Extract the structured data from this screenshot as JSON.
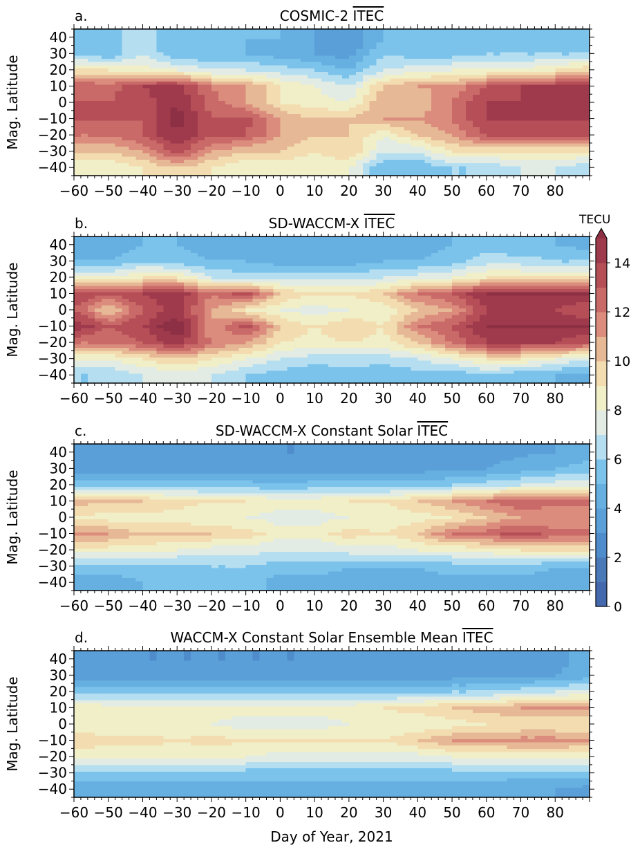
{
  "colorbar": {
    "label": "TECU",
    "levels_min": 0,
    "levels_max": 15,
    "level_step": 1,
    "extend": "max",
    "ticks": [
      0,
      2,
      4,
      6,
      8,
      10,
      12,
      14
    ],
    "colors": [
      "#4468ad",
      "#4a79b8",
      "#4f8ccb",
      "#5a9fd8",
      "#66afe1",
      "#7cc3ec",
      "#b5dff0",
      "#e2ece4",
      "#f1efc7",
      "#f2dcb0",
      "#e6b896",
      "#db8c7c",
      "#c96a69",
      "#b54e57",
      "#9e3a4b",
      "#8e3045"
    ]
  },
  "xlabel": "Day of Year, 2021",
  "chart_data": [
    {
      "type": "heatmap",
      "panel": "a.",
      "title": "COSMIC-2",
      "title_quantity": "ITEC",
      "ylabel": "Mag. Latitude",
      "xlim": [
        -60,
        90
      ],
      "ylim": [
        -45,
        45
      ],
      "xticks": [
        -60,
        -50,
        -40,
        -30,
        -20,
        -10,
        0,
        10,
        20,
        30,
        40,
        50,
        60,
        70,
        80
      ],
      "yticks": [
        40,
        30,
        20,
        10,
        0,
        -10,
        -20,
        -30,
        -40
      ],
      "x": [
        -60,
        -50,
        -40,
        -30,
        -20,
        -10,
        0,
        10,
        20,
        30,
        40,
        50,
        60,
        70,
        80,
        90
      ],
      "y": [
        40,
        30,
        20,
        10,
        0,
        -10,
        -20,
        -30,
        -40
      ],
      "z": [
        [
          6,
          5.5,
          6.5,
          5,
          5,
          5,
          5,
          4,
          3,
          5,
          5,
          5,
          5,
          5,
          6,
          5
        ],
        [
          6,
          5,
          7,
          5,
          5,
          5,
          4.5,
          4,
          3.5,
          6,
          5.5,
          5.5,
          6,
          6,
          6,
          6
        ],
        [
          9,
          9,
          8.5,
          8,
          7,
          7,
          6.5,
          6,
          5,
          7,
          7.5,
          8,
          8,
          8,
          9,
          10
        ],
        [
          13,
          12.5,
          14,
          14.5,
          12,
          11,
          9,
          8,
          7,
          10,
          11,
          11,
          13,
          14,
          14,
          14
        ],
        [
          13,
          13,
          13.5,
          15,
          12.5,
          11,
          9,
          8.5,
          8,
          11,
          10,
          12,
          14,
          14,
          15,
          14
        ],
        [
          13,
          13,
          13,
          15.5,
          13,
          13.5,
          11,
          10,
          10,
          11,
          11,
          12,
          14,
          14,
          14,
          14
        ],
        [
          12,
          12,
          13,
          15,
          13,
          13,
          11,
          10,
          10,
          8,
          10,
          11,
          13,
          13,
          13,
          13
        ],
        [
          10,
          10,
          11,
          13.5,
          11,
          10,
          10,
          9,
          10,
          7,
          7,
          9,
          9,
          9,
          9,
          9
        ],
        [
          8,
          8,
          9,
          10,
          9,
          8,
          8,
          8,
          8,
          5,
          5,
          6,
          6,
          7,
          7,
          6
        ]
      ]
    },
    {
      "type": "heatmap",
      "panel": "b.",
      "title": "SD-WACCM-X",
      "title_quantity": "ITEC",
      "ylabel": "Mag. Latitude",
      "xlim": [
        -60,
        90
      ],
      "ylim": [
        -45,
        45
      ],
      "xticks": [
        -60,
        -50,
        -40,
        -30,
        -20,
        -10,
        0,
        10,
        20,
        30,
        40,
        50,
        60,
        70,
        80
      ],
      "yticks": [
        40,
        30,
        20,
        10,
        0,
        -10,
        -20,
        -30,
        -40
      ],
      "x": [
        -60,
        -50,
        -40,
        -30,
        -20,
        -10,
        0,
        10,
        20,
        30,
        40,
        50,
        60,
        70,
        80,
        90
      ],
      "y": [
        40,
        30,
        20,
        10,
        0,
        -10,
        -20,
        -30,
        -40
      ],
      "z": [
        [
          4.5,
          4,
          5,
          5,
          4.5,
          4.5,
          4,
          4,
          4,
          4.5,
          4.5,
          5,
          5.5,
          5,
          5,
          4.5
        ],
        [
          5,
          5,
          6,
          5.5,
          5,
          5,
          4.5,
          4,
          4.5,
          5,
          5,
          5.5,
          6.5,
          6.5,
          6,
          6
        ],
        [
          8,
          8,
          9,
          9,
          7,
          6.5,
          6.5,
          6.5,
          6.5,
          7,
          7.5,
          8,
          9,
          9,
          9,
          9
        ],
        [
          14,
          13,
          14,
          15,
          12,
          13.5,
          10,
          9,
          9,
          10,
          12,
          13,
          15,
          15,
          15,
          15
        ],
        [
          13,
          10,
          13,
          14.5,
          11,
          9,
          8,
          7.5,
          8,
          8,
          10,
          11,
          14,
          14,
          14,
          13
        ],
        [
          15,
          13,
          14,
          16,
          11,
          13.5,
          10,
          9,
          10,
          9,
          12,
          13,
          15,
          15,
          15,
          15
        ],
        [
          12,
          12,
          13,
          14.5,
          12,
          11,
          9,
          8.5,
          9,
          8.5,
          10,
          12,
          14,
          14,
          14,
          13
        ],
        [
          8,
          8,
          9,
          10,
          9,
          8,
          7,
          6.5,
          6.5,
          6.5,
          7,
          8,
          9,
          9,
          8,
          7
        ],
        [
          6,
          6,
          7,
          7,
          7,
          6,
          5.5,
          5,
          5.5,
          5,
          5.5,
          5,
          6,
          5,
          5,
          4.5
        ]
      ]
    },
    {
      "type": "heatmap",
      "panel": "c.",
      "title": "SD-WACCM-X Constant Solar",
      "title_quantity": "ITEC",
      "ylabel": "Mag. Latitude",
      "xlim": [
        -60,
        90
      ],
      "ylim": [
        -45,
        45
      ],
      "xticks": [
        -60,
        -50,
        -40,
        -30,
        -20,
        -10,
        0,
        10,
        20,
        30,
        40,
        50,
        60,
        70,
        80
      ],
      "yticks": [
        40,
        30,
        20,
        10,
        0,
        -10,
        -20,
        -30,
        -40
      ],
      "x": [
        -60,
        -50,
        -40,
        -30,
        -20,
        -10,
        0,
        10,
        20,
        30,
        40,
        50,
        60,
        70,
        80,
        90
      ],
      "y": [
        40,
        30,
        20,
        10,
        0,
        -10,
        -20,
        -30,
        -40
      ],
      "z": [
        [
          3.5,
          3.5,
          3.5,
          3.5,
          3.5,
          3.5,
          3,
          3,
          3.5,
          3.5,
          3.5,
          3.5,
          3.5,
          3.8,
          4,
          4.5
        ],
        [
          3.5,
          3.5,
          3.5,
          3.5,
          3.5,
          3.5,
          3.5,
          3.5,
          3.5,
          3.5,
          3.5,
          3.8,
          4,
          4.5,
          5,
          5.5
        ],
        [
          5.5,
          5.5,
          5.5,
          5.5,
          5.5,
          5.5,
          5,
          5.5,
          5.5,
          5.5,
          5.5,
          6,
          6.5,
          7,
          7.5,
          8
        ],
        [
          10.5,
          10,
          10,
          9.5,
          9,
          9,
          8.5,
          8.5,
          9,
          9,
          10,
          11,
          12,
          13,
          12.5,
          12.5
        ],
        [
          9,
          8.5,
          8.5,
          8.5,
          8,
          8,
          7.5,
          7.5,
          8,
          8,
          8.5,
          9,
          10,
          11,
          11,
          11
        ],
        [
          11.5,
          11,
          10,
          10,
          10,
          9.5,
          8.5,
          8.5,
          9.5,
          9,
          10,
          12,
          12.5,
          13.5,
          12.5,
          12.5
        ],
        [
          8.5,
          8.5,
          8.5,
          8,
          7.5,
          7.5,
          7,
          7,
          7.5,
          7.5,
          8,
          8,
          8.5,
          9,
          9,
          9
        ],
        [
          5.5,
          5.5,
          5.5,
          5.5,
          6,
          6,
          5.5,
          5.5,
          5,
          5,
          5,
          5.5,
          5.5,
          5.5,
          5,
          5
        ],
        [
          4.5,
          4.5,
          5,
          5,
          5.5,
          5.5,
          4.5,
          4.5,
          4.5,
          4.5,
          4.5,
          4.5,
          4.5,
          4.5,
          4.5,
          4
        ]
      ]
    },
    {
      "type": "heatmap",
      "panel": "d.",
      "title": "WACCM-X Constant Solar Ensemble Mean",
      "title_quantity": "ITEC",
      "ylabel": "Mag. Latitude",
      "xlabel": "Day of Year, 2021",
      "xlim": [
        -60,
        90
      ],
      "ylim": [
        -45,
        45
      ],
      "xticks": [
        -60,
        -50,
        -40,
        -30,
        -20,
        -10,
        0,
        10,
        20,
        30,
        40,
        50,
        60,
        70,
        80
      ],
      "yticks": [
        40,
        30,
        20,
        10,
        0,
        -10,
        -20,
        -30,
        -40
      ],
      "x": [
        -60,
        -50,
        -40,
        -30,
        -20,
        -10,
        0,
        10,
        20,
        30,
        40,
        50,
        60,
        70,
        80,
        90
      ],
      "y": [
        40,
        30,
        20,
        10,
        0,
        -10,
        -20,
        -30,
        -40
      ],
      "z": [
        [
          3.5,
          3.5,
          3,
          3,
          3,
          3,
          3,
          3,
          3.5,
          3.5,
          3.5,
          3.5,
          3.5,
          3.5,
          3.5,
          4.5
        ],
        [
          3.5,
          3.5,
          3.5,
          3.5,
          3.5,
          3.5,
          3.5,
          3.5,
          3.5,
          3.5,
          3.5,
          3.5,
          3.5,
          3.8,
          4,
          4.5
        ],
        [
          5.5,
          5.5,
          5.5,
          5.5,
          5.5,
          5.5,
          5.5,
          5.5,
          5.5,
          5.5,
          5.5,
          6,
          6,
          6.5,
          7,
          7.5
        ],
        [
          9,
          8.5,
          8.5,
          8.5,
          8.5,
          8.5,
          8.5,
          8.5,
          8.5,
          9,
          9.5,
          10,
          10.5,
          11,
          11.5,
          11
        ],
        [
          8,
          8,
          8,
          8,
          8,
          7.5,
          7.5,
          7.5,
          8,
          8,
          8,
          8.5,
          9,
          9,
          9,
          9
        ],
        [
          10,
          9.5,
          9.5,
          9,
          9.5,
          9,
          9,
          9,
          9,
          9,
          10,
          11,
          11,
          11.5,
          11.5,
          11
        ],
        [
          8,
          8,
          8,
          8,
          8,
          8,
          7.5,
          7.5,
          7.5,
          7.5,
          7.5,
          8,
          8,
          8,
          8,
          8
        ],
        [
          5.5,
          5.5,
          5.5,
          5.5,
          5.5,
          5.5,
          5.5,
          5.5,
          5.5,
          5.5,
          5.5,
          5.5,
          5.5,
          5.5,
          5.5,
          5.5
        ],
        [
          4.5,
          4.5,
          4.5,
          4.5,
          4.5,
          4.5,
          4.5,
          4.5,
          4.5,
          4.5,
          4.5,
          4.5,
          4.5,
          4,
          4,
          3.5
        ]
      ]
    }
  ]
}
